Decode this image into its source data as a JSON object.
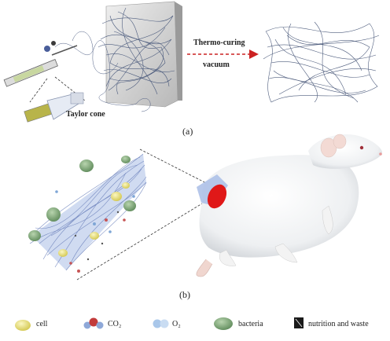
{
  "panel_a": {
    "caption": "(a)",
    "taylor_cone_label": "Taylor cone",
    "process_label_line1": "Thermo-curing",
    "process_label_line2": "vacuum"
  },
  "panel_b": {
    "caption": "(b)"
  },
  "legend": {
    "items": [
      {
        "label": "cell",
        "icon": "cell-icon"
      },
      {
        "label": "CO₂",
        "icon": "co2-molecule-icon"
      },
      {
        "label": "O₂",
        "icon": "o2-molecule-icon"
      },
      {
        "label": "bacteria",
        "icon": "bacteria-icon"
      },
      {
        "label": "nutrition and waste",
        "icon": "nutrition-waste-icon"
      }
    ]
  },
  "colors": {
    "fiber_dark": "#3a4a6e",
    "fiber_light": "#8fa3d6",
    "arrow_red": "#cc2222",
    "wound_red": "#e01818",
    "cell_yellow": "#e8e07a",
    "bacteria_green": "#7fa878"
  }
}
